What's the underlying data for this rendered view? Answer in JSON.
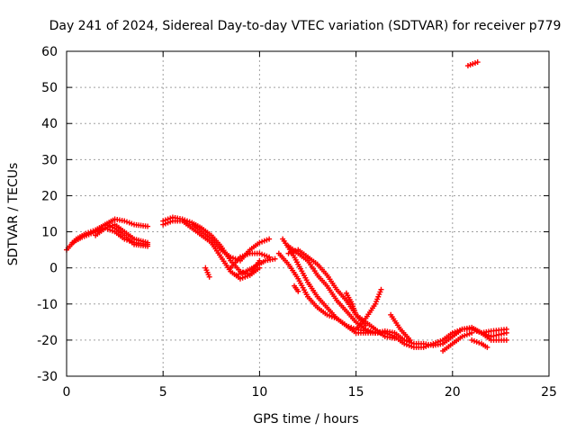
{
  "chart_data": {
    "type": "scatter",
    "title": "Day 241 of 2024, Sidereal Day-to-day VTEC variation (SDTVAR) for receiver p779",
    "xlabel": "GPS time / hours",
    "ylabel": "SDTVAR / TECUs",
    "xlim": [
      0,
      25
    ],
    "ylim": [
      -30,
      60
    ],
    "x_ticks": [
      "0",
      "5",
      "10",
      "15",
      "20",
      "25"
    ],
    "y_ticks": [
      "-30",
      "-20",
      "-10",
      "0",
      "10",
      "20",
      "30",
      "40",
      "50",
      "60"
    ],
    "grid": true,
    "marker": "+",
    "series": [
      {
        "name": "SDTVAR",
        "color": "#ff0000",
        "tracks": [
          [
            [
              0,
              5
            ],
            [
              0.5,
              8
            ],
            [
              1,
              9.5
            ],
            [
              1.5,
              10.5
            ],
            [
              2,
              12
            ],
            [
              2.5,
              13.5
            ],
            [
              3,
              13
            ],
            [
              3.5,
              12
            ],
            [
              4.2,
              11.5
            ]
          ],
          [
            [
              0.3,
              7
            ],
            [
              0.8,
              8.5
            ],
            [
              1.5,
              10
            ],
            [
              2,
              11
            ],
            [
              2.5,
              10
            ],
            [
              3,
              8
            ],
            [
              3.5,
              7
            ],
            [
              4.2,
              6.5
            ]
          ],
          [
            [
              1.5,
              9
            ],
            [
              2,
              11
            ],
            [
              2.5,
              12
            ],
            [
              3,
              10
            ],
            [
              3.5,
              8
            ],
            [
              4.2,
              7
            ]
          ],
          [
            [
              2,
              12
            ],
            [
              2.5,
              11
            ],
            [
              3,
              9
            ],
            [
              3.5,
              6.5
            ],
            [
              4.2,
              6
            ]
          ],
          [
            [
              5,
              13
            ],
            [
              5.5,
              14
            ],
            [
              6,
              13.5
            ],
            [
              6.5,
              12.5
            ],
            [
              7,
              11
            ],
            [
              7.5,
              9
            ],
            [
              8,
              6
            ],
            [
              8.5,
              2
            ],
            [
              9,
              -1
            ],
            [
              9.5,
              -2
            ],
            [
              10,
              0
            ]
          ],
          [
            [
              5,
              12
            ],
            [
              5.5,
              13
            ],
            [
              6,
              13
            ],
            [
              6.5,
              11
            ],
            [
              7,
              9
            ],
            [
              7.5,
              7
            ],
            [
              8,
              3
            ],
            [
              8.5,
              -1
            ],
            [
              9,
              -3
            ],
            [
              9.5,
              -2
            ],
            [
              10,
              2
            ]
          ],
          [
            [
              6.5,
              12
            ],
            [
              7,
              10
            ],
            [
              7.5,
              8
            ],
            [
              8,
              5
            ],
            [
              8.5,
              3
            ],
            [
              9,
              2
            ],
            [
              9.5,
              5
            ],
            [
              10,
              7
            ],
            [
              10.5,
              8
            ]
          ],
          [
            [
              7.2,
              0
            ],
            [
              7.4,
              -2.5
            ]
          ],
          [
            [
              8.5,
              0
            ],
            [
              9,
              3
            ],
            [
              9.5,
              4
            ],
            [
              10,
              4
            ],
            [
              10.5,
              3
            ]
          ],
          [
            [
              8.8,
              -2
            ],
            [
              9.3,
              -1
            ],
            [
              9.8,
              0.5
            ],
            [
              10.3,
              2
            ],
            [
              10.8,
              2.5
            ]
          ],
          [
            [
              11,
              4
            ],
            [
              11.5,
              1
            ],
            [
              12,
              -3
            ],
            [
              12.5,
              -8
            ],
            [
              13,
              -11
            ],
            [
              13.5,
              -13
            ],
            [
              14,
              -14
            ],
            [
              14.5,
              -16
            ],
            [
              15,
              -18
            ],
            [
              15.5,
              -18
            ],
            [
              16,
              -18
            ],
            [
              16.5,
              -17.5
            ],
            [
              17,
              -18
            ],
            [
              17.5,
              -20
            ],
            [
              18,
              -21
            ],
            [
              18.5,
              -21
            ],
            [
              19,
              -21.5
            ],
            [
              19.5,
              -21
            ],
            [
              20,
              -19
            ],
            [
              20.5,
              -17
            ],
            [
              21,
              -17
            ],
            [
              21.5,
              -18
            ],
            [
              22,
              -19
            ],
            [
              22.8,
              -18
            ]
          ],
          [
            [
              11.2,
              8
            ],
            [
              11.7,
              4
            ],
            [
              12,
              1
            ],
            [
              12.5,
              -4
            ],
            [
              13,
              -8
            ],
            [
              13.5,
              -11
            ],
            [
              14,
              -14
            ],
            [
              14.5,
              -16
            ],
            [
              15,
              -17
            ],
            [
              15.5,
              -17.5
            ],
            [
              16,
              -18
            ],
            [
              16.5,
              -18
            ],
            [
              17,
              -19
            ],
            [
              17.5,
              -21
            ],
            [
              18,
              -22
            ],
            [
              18.5,
              -22
            ],
            [
              19,
              -21
            ],
            [
              19.5,
              -20
            ],
            [
              20,
              -18
            ],
            [
              20.5,
              -17
            ],
            [
              21,
              -16.5
            ],
            [
              21.5,
              -18
            ],
            [
              22,
              -20
            ],
            [
              22.8,
              -20
            ]
          ],
          [
            [
              11.5,
              4
            ],
            [
              12,
              5
            ],
            [
              12.5,
              3
            ],
            [
              13,
              1
            ],
            [
              13.5,
              -2
            ],
            [
              14,
              -6
            ],
            [
              14.5,
              -9
            ],
            [
              15,
              -13
            ],
            [
              15.5,
              -15
            ],
            [
              16,
              -17
            ],
            [
              16.5,
              -19
            ],
            [
              17,
              -19.5
            ]
          ],
          [
            [
              11.5,
              6
            ],
            [
              12,
              4
            ],
            [
              12.5,
              2
            ],
            [
              13,
              -2
            ],
            [
              13.5,
              -5
            ],
            [
              14,
              -9
            ],
            [
              14.5,
              -12
            ],
            [
              15,
              -15
            ],
            [
              15.5,
              -17
            ],
            [
              16,
              -18
            ]
          ],
          [
            [
              11.8,
              -5
            ],
            [
              12,
              -6.5
            ]
          ],
          [
            [
              14.5,
              -7
            ],
            [
              14.8,
              -10
            ],
            [
              15,
              -13
            ],
            [
              15.5,
              -16
            ]
          ],
          [
            [
              15,
              -17
            ],
            [
              15.5,
              -14
            ],
            [
              16,
              -10
            ],
            [
              16.3,
              -6
            ]
          ],
          [
            [
              16.8,
              -13
            ],
            [
              17.3,
              -17
            ],
            [
              17.8,
              -20
            ]
          ],
          [
            [
              19.5,
              -23
            ],
            [
              20,
              -21
            ],
            [
              20.5,
              -19
            ],
            [
              21,
              -18
            ]
          ],
          [
            [
              21,
              -20
            ],
            [
              21.5,
              -21
            ],
            [
              21.8,
              -22
            ]
          ],
          [
            [
              21.5,
              -18
            ],
            [
              22,
              -17.5
            ],
            [
              22.8,
              -17
            ]
          ],
          [
            [
              20.8,
              56
            ],
            [
              21.3,
              57
            ]
          ]
        ]
      }
    ]
  }
}
